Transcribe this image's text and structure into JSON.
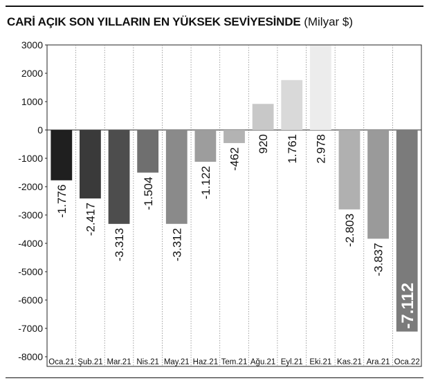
{
  "header": {
    "title": "CARİ AÇIK SON YILLARIN EN YÜKSEK SEVİYESİNDE",
    "unit": "(Milyar $)"
  },
  "chart_data": {
    "type": "bar",
    "categories": [
      "Oca.21",
      "Şub.21",
      "Mar.21",
      "Nis.21",
      "May.21",
      "Haz.21",
      "Tem.21",
      "Ağu.21",
      "Eyl.21",
      "Eki.21",
      "Kas.21",
      "Ara.21",
      "Oca.22"
    ],
    "values": [
      -1776,
      -2417,
      -3313,
      -1504,
      -3312,
      -1122,
      -462,
      920,
      1761,
      2978,
      -2803,
      -3837,
      -7112
    ],
    "value_labels": [
      "-1.776",
      "-2.417",
      "-3.313",
      "-1.504",
      "-3.312",
      "-1.122",
      "-462",
      "920",
      "1.761",
      "2.978",
      "-2.803",
      "-3.837",
      "-7.112"
    ],
    "bar_colors": [
      "#1f1f1f",
      "#3a3a3a",
      "#4d4d4d",
      "#6f6f6f",
      "#8a8a8a",
      "#9d9d9d",
      "#b3b3b3",
      "#c8c8c8",
      "#d9d9d9",
      "#ececec",
      "#b0b0b0",
      "#9a9a9a",
      "#7b7b7b"
    ],
    "highlight_label_index": 12,
    "ylim": [
      -8000,
      3000
    ],
    "yticks": [
      "3000",
      "2000",
      "1000",
      "0",
      "-1000",
      "-2000",
      "-3000",
      "-4000",
      "-5000",
      "-6000",
      "-7000",
      "-8000"
    ],
    "ytick_values": [
      3000,
      2000,
      1000,
      0,
      -1000,
      -2000,
      -3000,
      -4000,
      -5000,
      -6000,
      -7000,
      -8000
    ],
    "grid": "vertical-dotted",
    "xlabel": "",
    "ylabel": ""
  }
}
